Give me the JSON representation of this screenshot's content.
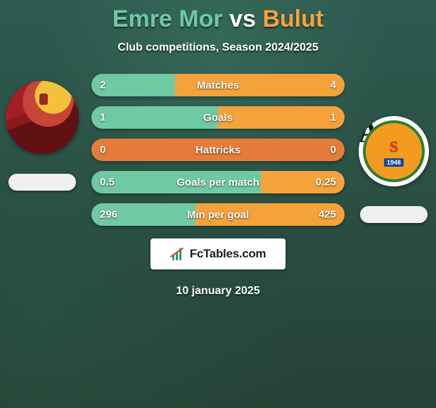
{
  "title": {
    "player1": "Emre Mor",
    "vs": "vs",
    "player2": "Bulut",
    "color_player1": "#6fc9a3",
    "color_vs": "#ffffff",
    "color_player2": "#f6a23b"
  },
  "subtitle": "Club competitions, Season 2024/2025",
  "date_text": "10 january 2025",
  "brand": {
    "text": "FcTables.com",
    "bar_color": "#2f9e67",
    "line_color": "#e2362b"
  },
  "players": {
    "left": {
      "name": "Emre Mor",
      "flag_bg": "#f0f0f0"
    },
    "right": {
      "name": "Bulut",
      "flag_bg": "#f0f0f0",
      "badge_year": "1948"
    }
  },
  "bar_colors": {
    "left": "#6fc9a3",
    "right": "#f6a23b",
    "track": "#e77c3a"
  },
  "stats": [
    {
      "label": "Matches",
      "left_val": "2",
      "right_val": "4",
      "left_pct": 33,
      "right_pct": 67
    },
    {
      "label": "Goals",
      "left_val": "1",
      "right_val": "1",
      "left_pct": 50,
      "right_pct": 50
    },
    {
      "label": "Hattricks",
      "left_val": "0",
      "right_val": "0",
      "left_pct": 0,
      "right_pct": 0
    },
    {
      "label": "Goals per match",
      "left_val": "0.5",
      "right_val": "0.25",
      "left_pct": 67,
      "right_pct": 33
    },
    {
      "label": "Min per goal",
      "left_val": "296",
      "right_val": "425",
      "left_pct": 41,
      "right_pct": 59
    }
  ]
}
